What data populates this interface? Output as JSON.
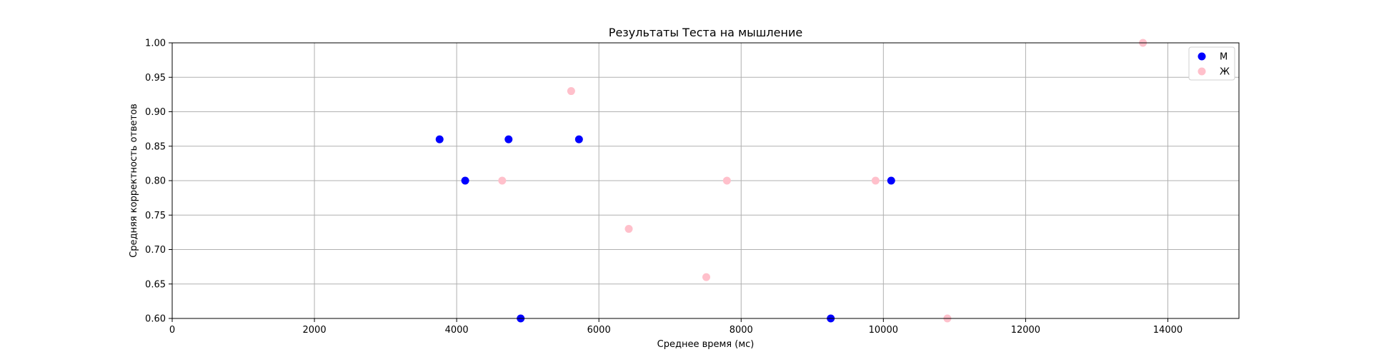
{
  "chart_data": {
    "type": "scatter",
    "title": "Результаты Теста на мышление",
    "xlabel": "Среднее время (мс)",
    "ylabel": "Средняя корректность ответов",
    "xlim": [
      0,
      15000
    ],
    "ylim": [
      0.6,
      1.0
    ],
    "xticks": [
      0,
      2000,
      4000,
      6000,
      8000,
      10000,
      12000,
      14000
    ],
    "xtick_labels": [
      "0",
      "2000",
      "4000",
      "6000",
      "8000",
      "10000",
      "12000",
      "14000"
    ],
    "yticks": [
      0.6,
      0.65,
      0.7,
      0.75,
      0.8,
      0.85,
      0.9,
      0.95,
      1.0
    ],
    "ytick_labels": [
      "0.60",
      "0.65",
      "0.70",
      "0.75",
      "0.80",
      "0.85",
      "0.90",
      "0.95",
      "1.00"
    ],
    "grid": true,
    "legend_position": "top-right",
    "series": [
      {
        "name": "М",
        "color": "#0000ff",
        "points": [
          {
            "x": 3760,
            "y": 0.86
          },
          {
            "x": 4120,
            "y": 0.8
          },
          {
            "x": 4730,
            "y": 0.86
          },
          {
            "x": 5720,
            "y": 0.86
          },
          {
            "x": 4900,
            "y": 0.6
          },
          {
            "x": 9260,
            "y": 0.6
          },
          {
            "x": 10110,
            "y": 0.8
          }
        ]
      },
      {
        "name": "Ж",
        "color": "#ffc0cb",
        "points": [
          {
            "x": 4640,
            "y": 0.8
          },
          {
            "x": 5610,
            "y": 0.93
          },
          {
            "x": 6420,
            "y": 0.73
          },
          {
            "x": 7510,
            "y": 0.66
          },
          {
            "x": 7800,
            "y": 0.8
          },
          {
            "x": 9890,
            "y": 0.8
          },
          {
            "x": 10900,
            "y": 0.6
          },
          {
            "x": 13650,
            "y": 1.0
          }
        ]
      }
    ]
  }
}
